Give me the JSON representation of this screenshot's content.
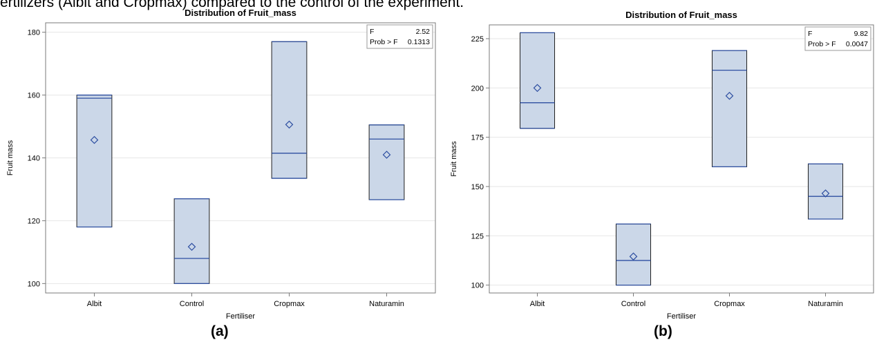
{
  "caption_fragment": "ertilizers (Albit and Cropmax) compared to the control of the experiment.",
  "panel_labels": [
    "(a)",
    "(b)"
  ],
  "chart_data": [
    {
      "type": "box",
      "title": "Distribution of Fruit_mass",
      "xlabel": "Fertiliser",
      "ylabel": "Fruit mass",
      "categories": [
        "Albit",
        "Control",
        "Cropmax",
        "Naturamin"
      ],
      "ylim": [
        97,
        183
      ],
      "yticks": [
        100,
        120,
        140,
        160,
        180
      ],
      "boxes": [
        {
          "min": 118,
          "q1": 118,
          "median": 159,
          "q3": 160,
          "max": 160,
          "mean": 145.7
        },
        {
          "min": 100,
          "q1": 100,
          "median": 108,
          "q3": 127,
          "max": 127,
          "mean": 111.7
        },
        {
          "min": 133.5,
          "q1": 133.5,
          "median": 141.5,
          "q3": 177,
          "max": 177,
          "mean": 150.6
        },
        {
          "min": 126.7,
          "q1": 126.7,
          "median": 146,
          "q3": 150.5,
          "max": 150.5,
          "mean": 141
        }
      ],
      "stats": {
        "f_label": "F",
        "f_value": "2.52",
        "p_label": "Prob > F",
        "p_value": "0.1313"
      },
      "grid": true,
      "stats_placement": "top-right"
    },
    {
      "type": "box",
      "title": "Distribution of Fruit_mass",
      "xlabel": "Fertiliser",
      "ylabel": "Fruit mass",
      "categories": [
        "Albit",
        "Control",
        "Cropmax",
        "Naturamin"
      ],
      "ylim": [
        96,
        232
      ],
      "yticks": [
        100,
        125,
        150,
        175,
        200,
        225
      ],
      "boxes": [
        {
          "min": 179.5,
          "q1": 179.5,
          "median": 192.5,
          "q3": 228,
          "max": 228,
          "mean": 200
        },
        {
          "min": 100,
          "q1": 100,
          "median": 112.5,
          "q3": 131,
          "max": 131,
          "mean": 114.5
        },
        {
          "min": 160,
          "q1": 160,
          "median": 209,
          "q3": 219,
          "max": 219,
          "mean": 196
        },
        {
          "min": 133.5,
          "q1": 133.5,
          "median": 145,
          "q3": 161.5,
          "max": 161.5,
          "mean": 146.5
        }
      ],
      "stats": {
        "f_label": "F",
        "f_value": "9.82",
        "p_label": "Prob > F",
        "p_value": "0.0047"
      },
      "grid": true,
      "stats_placement": "top-right"
    }
  ],
  "colors": {
    "box_fill": "#cbd7e8",
    "box_edge": "#1f1f1f",
    "median": "#2e4fa1",
    "mean_marker": "#2e4fa1",
    "grid": "#e6e6e6",
    "frame": "#7a7a7a"
  }
}
